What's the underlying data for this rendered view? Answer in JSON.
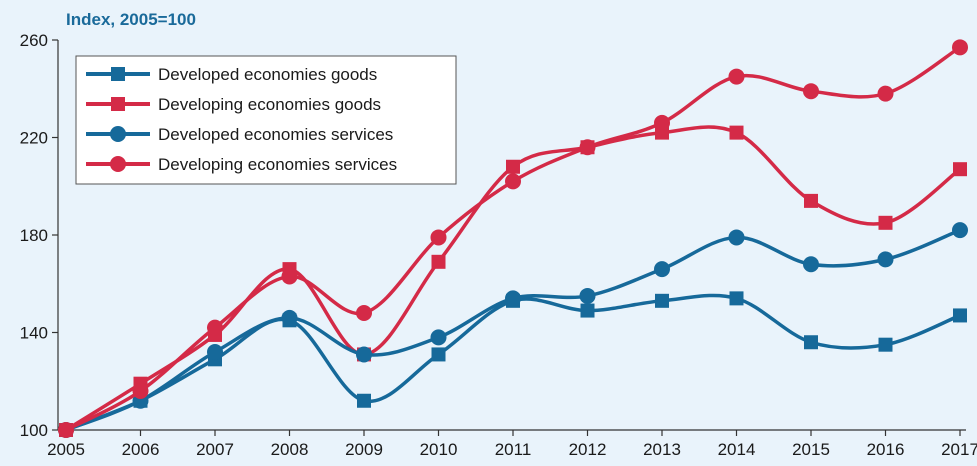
{
  "chart_data": {
    "type": "line",
    "unit_label": "Index, 2005=100",
    "x": [
      "2005",
      "2006",
      "2007",
      "2008",
      "2009",
      "2010",
      "2011",
      "2012",
      "2013",
      "2014",
      "2015",
      "2016",
      "2017"
    ],
    "ylim": [
      100,
      260
    ],
    "yticks": [
      "100",
      "140",
      "180",
      "220",
      "260"
    ],
    "grid": false,
    "legend_position": "top-left",
    "series": [
      {
        "name": "Developed economies goods",
        "color": "#16699a",
        "marker": "square",
        "values": [
          100,
          112,
          129,
          145,
          112,
          131,
          153,
          149,
          153,
          154,
          136,
          135,
          147
        ]
      },
      {
        "name": "Developing economies goods",
        "color": "#d42a47",
        "marker": "square",
        "values": [
          100,
          119,
          139,
          166,
          131,
          169,
          208,
          216,
          222,
          222,
          194,
          185,
          207
        ]
      },
      {
        "name": "Developed economies services",
        "color": "#16699a",
        "marker": "circle",
        "values": [
          100,
          112,
          132,
          146,
          131,
          138,
          154,
          155,
          166,
          179,
          168,
          170,
          182
        ]
      },
      {
        "name": "Developing economies services",
        "color": "#d42a47",
        "marker": "circle",
        "values": [
          100,
          116,
          142,
          163,
          148,
          179,
          202,
          216,
          226,
          245,
          239,
          238,
          257
        ]
      }
    ]
  }
}
